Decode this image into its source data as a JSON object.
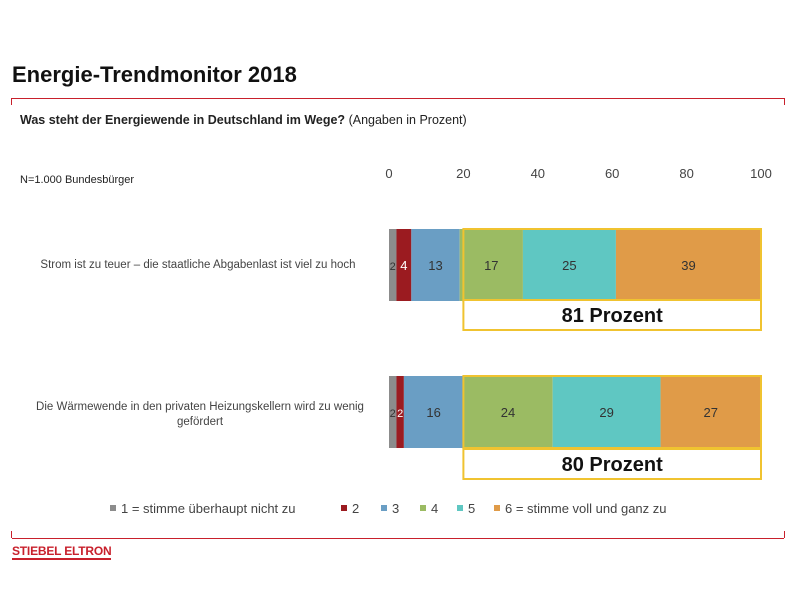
{
  "page": {
    "title": "Energie-Trendmonitor 2018",
    "question_bold": "Was steht der Energiewende in Deutschland im Wege?",
    "question_note": "(Angaben in Prozent)",
    "sample": "N=1.000 Bundesbürger",
    "logo": "STIEBEL ELTRON"
  },
  "colors": {
    "accent_red": "#c8202c",
    "highlight_box": "#f0c330"
  },
  "chart_data": {
    "type": "bar",
    "orientation": "horizontal",
    "stacked": true,
    "xlim": [
      0,
      100
    ],
    "xticks": [
      0,
      20,
      40,
      60,
      80,
      100
    ],
    "categories": [
      "Strom ist zu teuer – die staatliche Abgabenlast ist viel zu hoch",
      "Die Wärmewende in den privaten Heizungskellern wird zu wenig gefördert"
    ],
    "series": [
      {
        "name": "1 = stimme überhaupt nicht zu",
        "color": "#8c8c8c",
        "values": [
          2,
          2
        ],
        "labels": [
          "2",
          "2"
        ]
      },
      {
        "name": "2",
        "color": "#9b1b20",
        "values": [
          4,
          2
        ],
        "labels": [
          "4",
          "2"
        ]
      },
      {
        "name": "3",
        "color": "#6a9ec4",
        "values": [
          13,
          16
        ],
        "labels": [
          "13",
          "16"
        ]
      },
      {
        "name": "4",
        "color": "#9bbb63",
        "values": [
          17,
          24
        ],
        "labels": [
          "17",
          "24"
        ]
      },
      {
        "name": "5",
        "color": "#5fc7c2",
        "values": [
          25,
          29
        ],
        "labels": [
          "25",
          "29"
        ]
      },
      {
        "name": "6 = stimme voll und ganz zu",
        "color": "#e09b48",
        "values": [
          39,
          27
        ],
        "labels": [
          "39",
          "27"
        ]
      }
    ],
    "highlights": [
      {
        "label": "81 Prozent",
        "from": 20,
        "to": 100
      },
      {
        "label": "80 Prozent",
        "from": 20,
        "to": 100
      }
    ],
    "legend_position": "bottom"
  }
}
